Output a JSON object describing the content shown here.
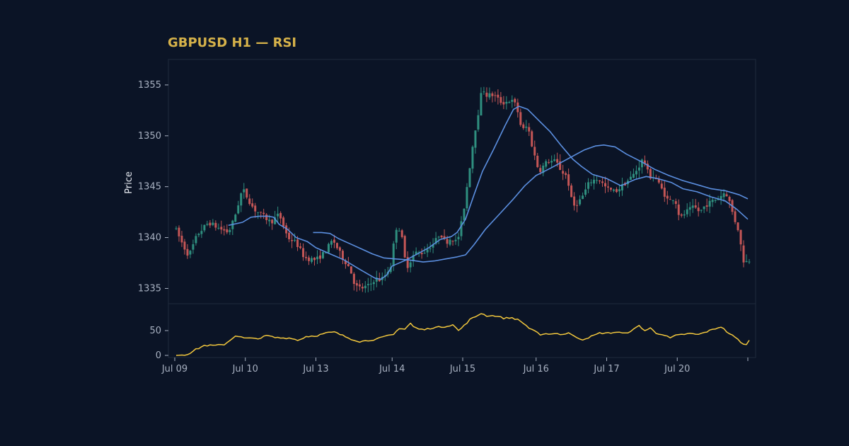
{
  "title": "GBPUSD H1 — RSI",
  "colors": {
    "background": "#0b1426",
    "panel": "#0b1426",
    "panel_border": "#1f2a3c",
    "title": "#d6b24a",
    "bull": "#2f8f7f",
    "bear": "#c45656",
    "ma": "#5b8fe0",
    "rsi": "#f2c73d",
    "tick_text": "#a7b0c0"
  },
  "chart_data": [
    {
      "type": "candlestick",
      "title": "GBPUSD H1 — RSI",
      "ylabel": "Price",
      "ylim": [
        1333.5,
        1357.5
      ],
      "yticks": [
        1335,
        1340,
        1345,
        1350,
        1355
      ],
      "xlim": [
        0,
        204
      ],
      "x_tick_positions": [
        0,
        25,
        50,
        77,
        102,
        128,
        153,
        178,
        203
      ],
      "x_tick_labels": [
        "Jul 09",
        "Jul 10",
        "Jul 13",
        "Jul 14",
        "Jul 15",
        "Jul 16",
        "Jul 17",
        "Jul 20",
        ""
      ],
      "grid": false,
      "price_anchors": [
        [
          0,
          1341.0
        ],
        [
          3,
          1339.2
        ],
        [
          5,
          1338.2
        ],
        [
          8,
          1340.3
        ],
        [
          12,
          1341.5
        ],
        [
          15,
          1341.0
        ],
        [
          19,
          1340.5
        ],
        [
          21,
          1341.8
        ],
        [
          24,
          1344.8
        ],
        [
          28,
          1342.8
        ],
        [
          31,
          1342.2
        ],
        [
          34,
          1341.5
        ],
        [
          37,
          1342.3
        ],
        [
          40,
          1340.0
        ],
        [
          43,
          1339.5
        ],
        [
          46,
          1338.0
        ],
        [
          50,
          1337.8
        ],
        [
          53,
          1338.5
        ],
        [
          56,
          1339.8
        ],
        [
          59,
          1338.2
        ],
        [
          62,
          1337.0
        ],
        [
          64,
          1335.2
        ],
        [
          66,
          1335.0
        ],
        [
          69,
          1335.3
        ],
        [
          71,
          1336.0
        ],
        [
          73,
          1335.8
        ],
        [
          75,
          1336.5
        ],
        [
          77,
          1337.5
        ],
        [
          78,
          1341.0
        ],
        [
          80,
          1340.8
        ],
        [
          82,
          1337.0
        ],
        [
          85,
          1338.5
        ],
        [
          88,
          1338.5
        ],
        [
          92,
          1339.5
        ],
        [
          94,
          1340.5
        ],
        [
          96,
          1339.5
        ],
        [
          98,
          1340.0
        ],
        [
          100,
          1339.5
        ],
        [
          102,
          1342.0
        ],
        [
          104,
          1346.0
        ],
        [
          106,
          1350.0
        ],
        [
          108,
          1353.0
        ],
        [
          109,
          1355.0
        ],
        [
          110,
          1354.0
        ],
        [
          113,
          1354.0
        ],
        [
          116,
          1353.2
        ],
        [
          119,
          1353.5
        ],
        [
          121,
          1353.0
        ],
        [
          123,
          1350.5
        ],
        [
          125,
          1351.0
        ],
        [
          127,
          1348.5
        ],
        [
          129,
          1346.5
        ],
        [
          132,
          1347.5
        ],
        [
          135,
          1347.5
        ],
        [
          137,
          1346.5
        ],
        [
          139,
          1346.0
        ],
        [
          141,
          1343.0
        ],
        [
          144,
          1343.8
        ],
        [
          147,
          1345.5
        ],
        [
          150,
          1345.8
        ],
        [
          153,
          1344.8
        ],
        [
          156,
          1344.5
        ],
        [
          159,
          1345.2
        ],
        [
          162,
          1346.0
        ],
        [
          164,
          1346.8
        ],
        [
          166,
          1347.8
        ],
        [
          168,
          1346.0
        ],
        [
          170,
          1346.0
        ],
        [
          172,
          1345.0
        ],
        [
          175,
          1343.5
        ],
        [
          177,
          1344.0
        ],
        [
          179,
          1341.8
        ],
        [
          181,
          1342.5
        ],
        [
          184,
          1343.0
        ],
        [
          186,
          1342.5
        ],
        [
          188,
          1343.2
        ],
        [
          190,
          1343.5
        ],
        [
          193,
          1344.0
        ],
        [
          195,
          1344.5
        ],
        [
          196,
          1344.0
        ],
        [
          198,
          1342.0
        ],
        [
          200,
          1340.5
        ],
        [
          201,
          1338.0
        ],
        [
          202,
          1337.5
        ],
        [
          203,
          1337.8
        ]
      ],
      "moving_averages": [
        {
          "points": [
            [
              19,
              1341.2
            ],
            [
              24,
              1341.5
            ],
            [
              27,
              1342.0
            ],
            [
              30,
              1342.1
            ],
            [
              33,
              1342.1
            ],
            [
              35,
              1342.0
            ],
            [
              37,
              1341.3
            ],
            [
              40,
              1340.8
            ],
            [
              43,
              1340.0
            ],
            [
              47,
              1339.6
            ],
            [
              50,
              1339.0
            ],
            [
              55,
              1338.4
            ],
            [
              60,
              1337.8
            ],
            [
              66,
              1336.8
            ],
            [
              71,
              1336.0
            ],
            [
              73,
              1335.9
            ],
            [
              75,
              1336.3
            ],
            [
              77,
              1337.2
            ],
            [
              82,
              1337.8
            ],
            [
              86,
              1338.4
            ],
            [
              90,
              1339.0
            ],
            [
              94,
              1339.8
            ],
            [
              98,
              1340.1
            ],
            [
              100,
              1340.5
            ],
            [
              103,
              1341.8
            ],
            [
              106,
              1344.2
            ],
            [
              109,
              1346.5
            ],
            [
              113,
              1348.7
            ],
            [
              117,
              1351.0
            ],
            [
              120,
              1352.6
            ],
            [
              122,
              1352.9
            ],
            [
              125,
              1352.6
            ],
            [
              129,
              1351.5
            ],
            [
              133,
              1350.4
            ],
            [
              137,
              1349.0
            ],
            [
              141,
              1347.7
            ],
            [
              144,
              1347.0
            ],
            [
              148,
              1346.2
            ],
            [
              153,
              1345.8
            ],
            [
              158,
              1345.1
            ],
            [
              163,
              1345.7
            ],
            [
              167,
              1346.0
            ],
            [
              171,
              1345.8
            ],
            [
              176,
              1345.4
            ],
            [
              180,
              1344.8
            ],
            [
              185,
              1344.5
            ],
            [
              190,
              1344.0
            ],
            [
              195,
              1343.6
            ],
            [
              199,
              1342.8
            ],
            [
              203,
              1341.8
            ]
          ]
        },
        {
          "points": [
            [
              49,
              1340.5
            ],
            [
              52,
              1340.5
            ],
            [
              55,
              1340.4
            ],
            [
              58,
              1339.9
            ],
            [
              62,
              1339.4
            ],
            [
              66,
              1338.9
            ],
            [
              70,
              1338.4
            ],
            [
              74,
              1338.0
            ],
            [
              78,
              1337.9
            ],
            [
              83,
              1337.8
            ],
            [
              88,
              1337.6
            ],
            [
              92,
              1337.7
            ],
            [
              96,
              1337.9
            ],
            [
              100,
              1338.1
            ],
            [
              103,
              1338.3
            ],
            [
              106,
              1339.3
            ],
            [
              110,
              1340.8
            ],
            [
              115,
              1342.3
            ],
            [
              120,
              1343.8
            ],
            [
              124,
              1345.1
            ],
            [
              128,
              1346.1
            ],
            [
              133,
              1346.8
            ],
            [
              137,
              1347.4
            ],
            [
              141,
              1348.0
            ],
            [
              145,
              1348.6
            ],
            [
              149,
              1349.0
            ],
            [
              152,
              1349.1
            ],
            [
              156,
              1348.9
            ],
            [
              160,
              1348.2
            ],
            [
              165,
              1347.5
            ],
            [
              170,
              1346.7
            ],
            [
              175,
              1346.1
            ],
            [
              180,
              1345.6
            ],
            [
              185,
              1345.2
            ],
            [
              190,
              1344.8
            ],
            [
              195,
              1344.6
            ],
            [
              200,
              1344.2
            ],
            [
              203,
              1343.8
            ]
          ]
        }
      ]
    },
    {
      "type": "line",
      "ylim": [
        0,
        100
      ],
      "yticks": [
        0,
        50
      ],
      "points": [
        [
          0,
          0
        ],
        [
          3,
          1
        ],
        [
          5,
          5
        ],
        [
          7,
          12
        ],
        [
          10,
          20
        ],
        [
          14,
          20
        ],
        [
          17,
          22
        ],
        [
          19,
          30
        ],
        [
          21,
          40
        ],
        [
          24,
          35
        ],
        [
          27,
          34
        ],
        [
          30,
          35
        ],
        [
          32,
          40
        ],
        [
          35,
          36
        ],
        [
          38,
          35
        ],
        [
          41,
          35
        ],
        [
          43,
          30
        ],
        [
          46,
          38
        ],
        [
          50,
          40
        ],
        [
          53,
          45
        ],
        [
          56,
          47
        ],
        [
          59,
          40
        ],
        [
          62,
          33
        ],
        [
          65,
          28
        ],
        [
          68,
          30
        ],
        [
          71,
          33
        ],
        [
          74,
          38
        ],
        [
          77,
          42
        ],
        [
          79,
          55
        ],
        [
          81,
          53
        ],
        [
          83,
          65
        ],
        [
          84,
          58
        ],
        [
          86,
          53
        ],
        [
          88,
          52
        ],
        [
          91,
          56
        ],
        [
          95,
          58
        ],
        [
          98,
          62
        ],
        [
          100,
          50
        ],
        [
          102,
          60
        ],
        [
          104,
          72
        ],
        [
          106,
          78
        ],
        [
          108,
          85
        ],
        [
          110,
          80
        ],
        [
          113,
          80
        ],
        [
          116,
          75
        ],
        [
          119,
          76
        ],
        [
          121,
          72
        ],
        [
          123,
          65
        ],
        [
          125,
          55
        ],
        [
          127,
          50
        ],
        [
          129,
          40
        ],
        [
          132,
          44
        ],
        [
          135,
          44
        ],
        [
          137,
          42
        ],
        [
          139,
          46
        ],
        [
          141,
          38
        ],
        [
          144,
          32
        ],
        [
          147,
          38
        ],
        [
          150,
          45
        ],
        [
          153,
          45
        ],
        [
          156,
          47
        ],
        [
          159,
          44
        ],
        [
          162,
          52
        ],
        [
          164,
          60
        ],
        [
          166,
          50
        ],
        [
          168,
          55
        ],
        [
          170,
          45
        ],
        [
          172,
          43
        ],
        [
          175,
          35
        ],
        [
          177,
          40
        ],
        [
          179,
          42
        ],
        [
          182,
          44
        ],
        [
          185,
          42
        ],
        [
          188,
          48
        ],
        [
          190,
          52
        ],
        [
          193,
          58
        ],
        [
          195,
          48
        ],
        [
          197,
          40
        ],
        [
          199,
          32
        ],
        [
          201,
          22
        ],
        [
          202,
          21
        ],
        [
          203,
          32
        ]
      ]
    }
  ]
}
